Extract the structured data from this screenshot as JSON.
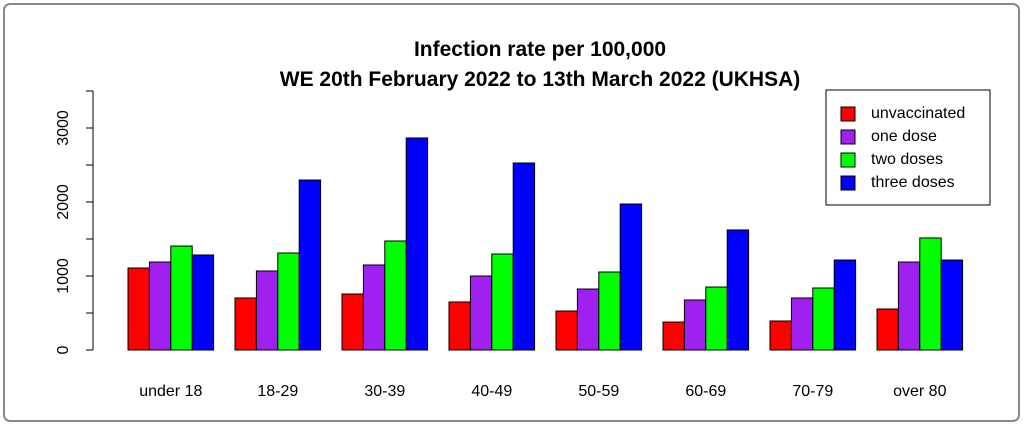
{
  "chart_data": {
    "type": "bar",
    "title": [
      "Infection rate per 100,000",
      "WE 20th February 2022 to 13th March 2022 (UKHSA)"
    ],
    "categories": [
      "under 18",
      "18-29",
      "30-39",
      "40-49",
      "50-59",
      "60-69",
      "70-79",
      "over 80"
    ],
    "series": [
      {
        "name": "unvaccinated",
        "color": "#ff0000",
        "values": [
          1108,
          703,
          757,
          649,
          527,
          378,
          392,
          554
        ]
      },
      {
        "name": "one dose",
        "color": "#a020f0",
        "values": [
          1189,
          1068,
          1149,
          1000,
          824,
          676,
          703,
          1189
        ]
      },
      {
        "name": "two doses",
        "color": "#00ff00",
        "values": [
          1405,
          1311,
          1473,
          1297,
          1054,
          851,
          838,
          1514
        ]
      },
      {
        "name": "three doses",
        "color": "#0000ff",
        "values": [
          1284,
          2297,
          2865,
          2527,
          1973,
          1622,
          1216,
          1216
        ]
      }
    ],
    "ylim": [
      0,
      3500
    ],
    "yticks": [
      0,
      1000,
      2000,
      3000
    ],
    "yminor_ticks": [
      500,
      1500,
      2500,
      3500
    ],
    "legend": "top-right",
    "grid": false
  }
}
